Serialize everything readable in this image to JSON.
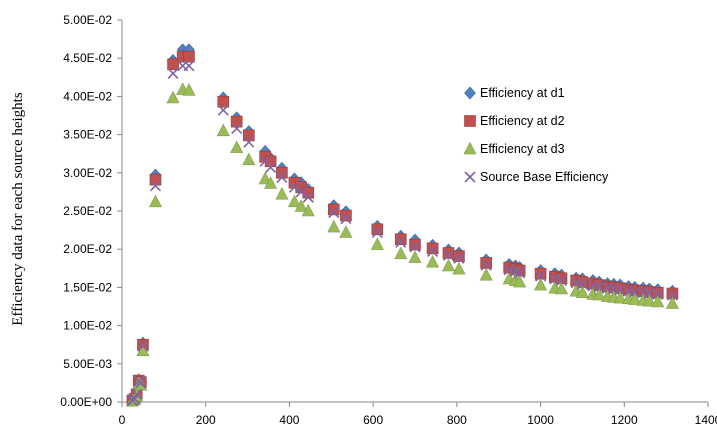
{
  "chart_data": {
    "type": "scatter",
    "title": "",
    "xlabel": "",
    "ylabel": "Efficiency data for each source heights",
    "xlim": [
      0,
      1400
    ],
    "ylim": [
      0,
      0.05
    ],
    "x_ticks": [
      "0",
      "200",
      "400",
      "600",
      "800",
      "1000",
      "1200",
      "1400"
    ],
    "y_ticks": [
      "0.00E+00",
      "5.00E-03",
      "1.00E-02",
      "1.50E-02",
      "2.00E-02",
      "2.50E-02",
      "3.00E-02",
      "3.50E-02",
      "4.00E-02",
      "4.50E-02",
      "5.00E-02"
    ],
    "grid": false,
    "legend_position": "right",
    "series": [
      {
        "name": "Efficiency at d1",
        "marker": "diamond",
        "color": "#4f81bd",
        "x": [
          25,
          30,
          35,
          40,
          45,
          50,
          80,
          122,
          145,
          160,
          242,
          274,
          303,
          342,
          355,
          382,
          412,
          428,
          445,
          506,
          535,
          610,
          666,
          700,
          742,
          780,
          805,
          870,
          925,
          940,
          950,
          1000,
          1034,
          1050,
          1085,
          1100,
          1125,
          1140,
          1160,
          1175,
          1190,
          1210,
          1225,
          1245,
          1260,
          1280,
          1315
        ],
        "y": [
          0.0002,
          0.0005,
          0.0011,
          0.0029,
          0.0027,
          0.0077,
          0.0297,
          0.0447,
          0.0461,
          0.0461,
          0.0398,
          0.0372,
          0.0354,
          0.0328,
          0.0319,
          0.0306,
          0.0292,
          0.0287,
          0.0278,
          0.0257,
          0.0249,
          0.023,
          0.0217,
          0.0212,
          0.0205,
          0.0199,
          0.0195,
          0.0186,
          0.018,
          0.0178,
          0.0176,
          0.0172,
          0.0168,
          0.0166,
          0.0162,
          0.0161,
          0.0159,
          0.0157,
          0.0155,
          0.0154,
          0.0153,
          0.0151,
          0.015,
          0.0149,
          0.0148,
          0.0147,
          0.0145
        ]
      },
      {
        "name": "Efficiency at d2",
        "marker": "square",
        "color": "#c0504d",
        "x": [
          25,
          30,
          35,
          40,
          45,
          50,
          80,
          122,
          145,
          160,
          242,
          274,
          303,
          342,
          355,
          382,
          412,
          428,
          445,
          506,
          535,
          610,
          666,
          700,
          742,
          780,
          805,
          870,
          925,
          940,
          950,
          1000,
          1034,
          1050,
          1085,
          1100,
          1125,
          1140,
          1160,
          1175,
          1190,
          1210,
          1225,
          1245,
          1260,
          1280,
          1315
        ],
        "y": [
          0.0002,
          0.0004,
          0.001,
          0.0028,
          0.0026,
          0.0075,
          0.0291,
          0.0442,
          0.0452,
          0.0452,
          0.0393,
          0.0367,
          0.0349,
          0.0321,
          0.0315,
          0.03,
          0.0287,
          0.0281,
          0.0274,
          0.0252,
          0.0244,
          0.0226,
          0.0213,
          0.0206,
          0.0201,
          0.0195,
          0.0191,
          0.0182,
          0.0176,
          0.0174,
          0.0172,
          0.0168,
          0.0164,
          0.0162,
          0.0159,
          0.0157,
          0.0155,
          0.0153,
          0.0151,
          0.015,
          0.0149,
          0.0147,
          0.0146,
          0.0145,
          0.0144,
          0.0143,
          0.0142
        ]
      },
      {
        "name": "Efficiency at d3",
        "marker": "triangle",
        "color": "#9bbb59",
        "x": [
          25,
          30,
          35,
          40,
          45,
          50,
          80,
          122,
          145,
          160,
          242,
          274,
          303,
          342,
          355,
          382,
          412,
          428,
          445,
          506,
          535,
          610,
          666,
          700,
          742,
          780,
          805,
          870,
          925,
          940,
          950,
          1000,
          1034,
          1050,
          1085,
          1100,
          1125,
          1140,
          1160,
          1175,
          1190,
          1210,
          1225,
          1245,
          1260,
          1280,
          1315
        ],
        "y": [
          0.0001,
          0.0003,
          0.0008,
          0.0024,
          0.0022,
          0.0067,
          0.0262,
          0.0398,
          0.0409,
          0.0408,
          0.0355,
          0.0333,
          0.0317,
          0.0292,
          0.0286,
          0.0272,
          0.0262,
          0.0256,
          0.025,
          0.0229,
          0.0222,
          0.0206,
          0.0194,
          0.0189,
          0.0183,
          0.0178,
          0.0174,
          0.0166,
          0.0161,
          0.0159,
          0.0157,
          0.0153,
          0.0149,
          0.0148,
          0.0145,
          0.0143,
          0.0141,
          0.014,
          0.0138,
          0.0137,
          0.0136,
          0.0135,
          0.0134,
          0.0133,
          0.0132,
          0.0131,
          0.0129
        ]
      },
      {
        "name": "Source Base Efficiency",
        "marker": "x",
        "color": "#8064a2",
        "x": [
          25,
          30,
          35,
          40,
          45,
          50,
          80,
          122,
          145,
          160,
          242,
          274,
          303,
          342,
          355,
          382,
          412,
          428,
          445,
          506,
          535,
          610,
          666,
          700,
          742,
          780,
          805,
          870,
          925,
          940,
          950,
          1000,
          1034,
          1050,
          1085,
          1100,
          1125,
          1140,
          1160,
          1175,
          1190,
          1210,
          1225,
          1245,
          1260,
          1280,
          1315
        ],
        "y": [
          0.0002,
          0.0004,
          0.001,
          0.0027,
          0.0025,
          0.0073,
          0.0283,
          0.043,
          0.044,
          0.044,
          0.0382,
          0.0358,
          0.034,
          0.0315,
          0.0307,
          0.0294,
          0.0281,
          0.0275,
          0.0268,
          0.0248,
          0.024,
          0.0222,
          0.0209,
          0.0203,
          0.0197,
          0.0192,
          0.0188,
          0.0179,
          0.0173,
          0.0171,
          0.0169,
          0.0165,
          0.0161,
          0.0159,
          0.0156,
          0.0154,
          0.0152,
          0.0151,
          0.0149,
          0.0148,
          0.0147,
          0.0145,
          0.0144,
          0.0143,
          0.0142,
          0.0141,
          0.014
        ]
      }
    ]
  }
}
